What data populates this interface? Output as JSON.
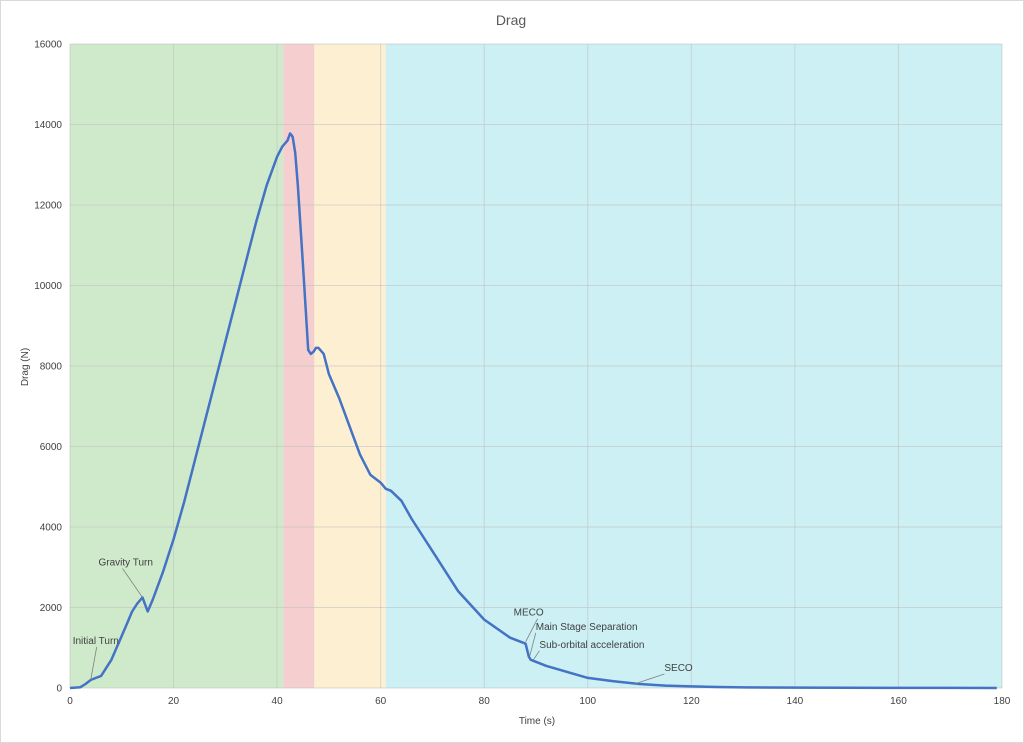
{
  "chart_data": {
    "type": "line",
    "title": "Drag",
    "xlabel": "Time (s)",
    "ylabel": "Drag (N)",
    "xlim": [
      0,
      180
    ],
    "ylim": [
      0,
      16000
    ],
    "x_ticks": [
      0,
      20,
      40,
      60,
      80,
      100,
      120,
      140,
      160,
      180
    ],
    "y_ticks": [
      0,
      2000,
      4000,
      6000,
      8000,
      10000,
      12000,
      14000,
      16000
    ],
    "grid": true,
    "legend": "none",
    "line_color": "#4472c4",
    "phases": [
      {
        "start": 0,
        "end": 41.2,
        "color": "#cfeacb"
      },
      {
        "start": 41.2,
        "end": 47.2,
        "color": "#f5cfcf"
      },
      {
        "start": 47.2,
        "end": 61.0,
        "color": "#fdf0d2"
      },
      {
        "start": 61.0,
        "end": 180,
        "color": "#ccf0f3"
      }
    ],
    "series": [
      {
        "x": [
          0,
          2,
          3,
          4,
          5,
          6,
          7,
          8,
          9,
          10,
          11,
          12,
          13,
          14,
          15,
          16,
          18,
          20,
          22,
          24,
          26,
          28,
          30,
          32,
          34,
          36,
          38,
          40,
          41,
          42,
          42.5,
          43,
          43.5,
          44,
          45,
          46,
          46.5,
          47,
          47.5,
          48,
          49,
          50,
          52,
          54,
          56,
          58,
          60,
          61,
          62,
          64,
          66,
          70,
          75,
          80,
          85,
          88,
          88.6,
          89,
          92,
          96,
          100,
          105,
          110,
          115,
          120,
          125,
          130,
          140,
          150,
          160,
          170,
          179
        ],
        "y": [
          0,
          20,
          100,
          200,
          250,
          300,
          500,
          700,
          1000,
          1300,
          1600,
          1900,
          2100,
          2250,
          1900,
          2200,
          2900,
          3700,
          4600,
          5600,
          6600,
          7600,
          8600,
          9600,
          10600,
          11600,
          12500,
          13200,
          13450,
          13600,
          13780,
          13700,
          13300,
          12500,
          10500,
          8400,
          8300,
          8350,
          8450,
          8450,
          8300,
          7800,
          7200,
          6500,
          5800,
          5300,
          5100,
          4950,
          4900,
          4650,
          4200,
          3400,
          2400,
          1700,
          1250,
          1100,
          780,
          700,
          550,
          400,
          250,
          170,
          100,
          60,
          40,
          25,
          15,
          10,
          5,
          3,
          2,
          1
        ]
      }
    ],
    "annotations": [
      {
        "label": "Initial Turn",
        "x": 4,
        "y": 200
      },
      {
        "label": "Gravity Turn",
        "x": 14,
        "y": 2250
      },
      {
        "label": "MECO",
        "x": 88,
        "y": 1150
      },
      {
        "label": "Main Stage Separation",
        "x": 88.8,
        "y": 800
      },
      {
        "label": "Sub-orbital acceleration",
        "x": 89.5,
        "y": 700
      },
      {
        "label": "SECO",
        "x": 109,
        "y": 100
      }
    ]
  }
}
